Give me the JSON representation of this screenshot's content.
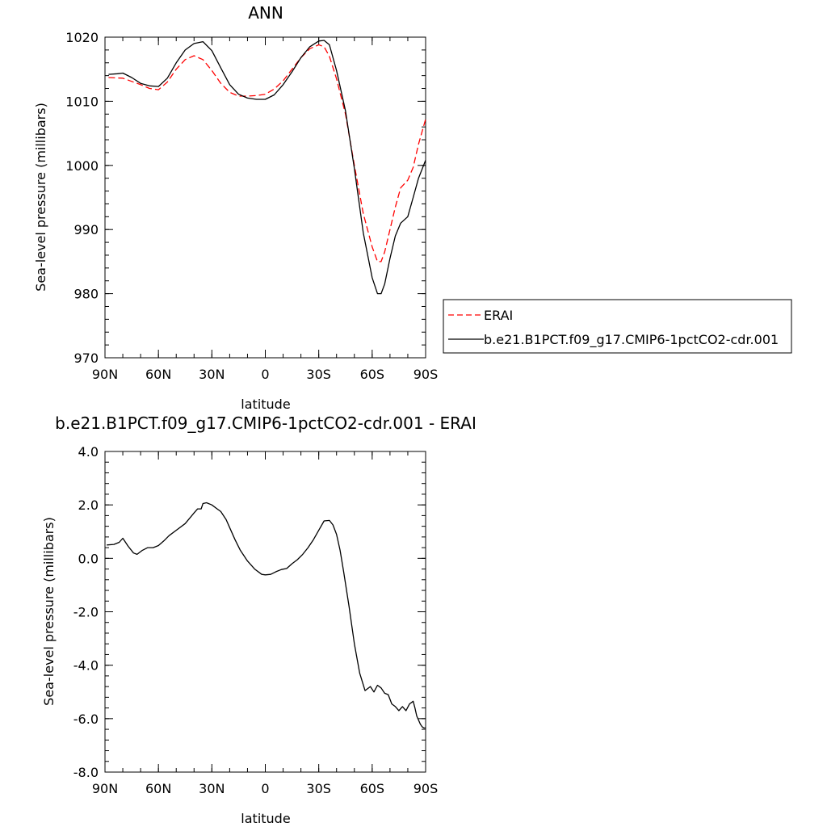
{
  "chart_data": [
    {
      "type": "line",
      "title": "ANN",
      "xlabel": "latitude",
      "ylabel": "Sea-level pressure (millibars)",
      "xlim": [
        90,
        -90
      ],
      "ylim": [
        970,
        1020
      ],
      "x_ticks": [
        90,
        60,
        30,
        0,
        -30,
        -60,
        -90
      ],
      "x_tick_labels": [
        "90N",
        "60N",
        "30N",
        "0",
        "30S",
        "60S",
        "90S"
      ],
      "y_ticks": [
        970,
        980,
        990,
        1000,
        1010,
        1020
      ],
      "y_tick_labels": [
        "970",
        "980",
        "990",
        "1000",
        "1010",
        "1020"
      ],
      "grid": false,
      "legend_position": "right",
      "series": [
        {
          "name": "ERAI",
          "color": "#ff0000",
          "dash": "dashed",
          "x": [
            88,
            80,
            75,
            70,
            65,
            60,
            55,
            50,
            45,
            40,
            35,
            30,
            25,
            20,
            15,
            10,
            5,
            0,
            -5,
            -10,
            -15,
            -20,
            -25,
            -30,
            -33,
            -36,
            -40,
            -45,
            -50,
            -55,
            -60,
            -63,
            -65,
            -67,
            -70,
            -73,
            -76,
            -80,
            -83,
            -86,
            -90
          ],
          "y": [
            1013.7,
            1013.6,
            1013.1,
            1012.6,
            1012.0,
            1011.8,
            1013.0,
            1015.0,
            1016.5,
            1017.1,
            1016.5,
            1014.8,
            1012.8,
            1011.4,
            1010.8,
            1010.8,
            1010.9,
            1011.1,
            1011.9,
            1013.2,
            1015.0,
            1016.8,
            1018.2,
            1018.8,
            1018.5,
            1017.0,
            1013.5,
            1008.0,
            1000.0,
            992.5,
            987.3,
            985.0,
            985.0,
            986.5,
            990.0,
            993.5,
            996.5,
            997.7,
            999.7,
            1003.3,
            1007.2
          ]
        },
        {
          "name": "b.e21.B1PCT.f09_g17.CMIP6-1pctCO2-cdr.001",
          "color": "#000000",
          "dash": "solid",
          "x": [
            88,
            83,
            80,
            75,
            70,
            65,
            60,
            55,
            50,
            45,
            40,
            35,
            30,
            25,
            20,
            15,
            10,
            5,
            0,
            -5,
            -10,
            -15,
            -20,
            -25,
            -30,
            -33,
            -36,
            -40,
            -45,
            -50,
            -55,
            -60,
            -63,
            -65,
            -67,
            -70,
            -73,
            -76,
            -80,
            -83,
            -86,
            -90
          ],
          "y": [
            1014.2,
            1014.3,
            1014.4,
            1013.7,
            1012.8,
            1012.4,
            1012.3,
            1013.6,
            1016.0,
            1018.0,
            1019.0,
            1019.3,
            1017.9,
            1015.2,
            1012.6,
            1011.1,
            1010.5,
            1010.3,
            1010.3,
            1011.0,
            1012.6,
            1014.6,
            1016.8,
            1018.5,
            1019.4,
            1019.5,
            1018.8,
            1014.8,
            1008.5,
            999.5,
            989.5,
            982.5,
            980.0,
            980.0,
            981.5,
            985.5,
            989.0,
            991.0,
            992.0,
            995.0,
            998.0,
            1000.8
          ]
        }
      ]
    },
    {
      "type": "line",
      "title": "b.e21.B1PCT.f09_g17.CMIP6-1pctCO2-cdr.001 - ERAI",
      "xlabel": "latitude",
      "ylabel": "Sea-level pressure (millibars)",
      "xlim": [
        90,
        -90
      ],
      "ylim": [
        -8,
        4
      ],
      "x_ticks": [
        90,
        60,
        30,
        0,
        -30,
        -60,
        -90
      ],
      "x_tick_labels": [
        "90N",
        "60N",
        "30N",
        "0",
        "30S",
        "60S",
        "90S"
      ],
      "y_ticks": [
        -8,
        -6,
        -4,
        -2,
        0,
        2,
        4
      ],
      "y_tick_labels": [
        "-8.0",
        "-6.0",
        "-4.0",
        "-2.0",
        "0.0",
        "2.0",
        "4.0"
      ],
      "grid": false,
      "series": [
        {
          "color": "#000000",
          "dash": "solid",
          "x": [
            89,
            85,
            82,
            80,
            77,
            74,
            72,
            69,
            66,
            63,
            60,
            57,
            54,
            50,
            45,
            40,
            38,
            36,
            35,
            33,
            30,
            27,
            25,
            22,
            20,
            17,
            14,
            10,
            6,
            2,
            0,
            -3,
            -6,
            -9,
            -12,
            -15,
            -18,
            -21,
            -24,
            -27,
            -30,
            -33,
            -36,
            -38,
            -40,
            -42,
            -44,
            -47,
            -50,
            -53,
            -56,
            -59,
            -61,
            -63,
            -65,
            -67,
            -69,
            -71,
            -73,
            -75,
            -77,
            -79,
            -81,
            -83,
            -84,
            -85,
            -86,
            -87,
            -88,
            -89,
            -90
          ],
          "y": [
            0.5,
            0.52,
            0.6,
            0.75,
            0.45,
            0.2,
            0.15,
            0.3,
            0.4,
            0.4,
            0.48,
            0.65,
            0.85,
            1.05,
            1.3,
            1.7,
            1.85,
            1.85,
            2.05,
            2.08,
            2.0,
            1.85,
            1.75,
            1.45,
            1.15,
            0.7,
            0.3,
            -0.1,
            -0.4,
            -0.6,
            -0.62,
            -0.6,
            -0.5,
            -0.42,
            -0.38,
            -0.2,
            -0.05,
            0.15,
            0.4,
            0.7,
            1.05,
            1.4,
            1.42,
            1.25,
            0.9,
            0.3,
            -0.5,
            -1.8,
            -3.2,
            -4.3,
            -4.95,
            -4.8,
            -5.0,
            -4.75,
            -4.85,
            -5.05,
            -5.1,
            -5.45,
            -5.55,
            -5.7,
            -5.55,
            -5.7,
            -5.45,
            -5.35,
            -5.6,
            -5.9,
            -6.05,
            -6.2,
            -6.3,
            -6.35,
            -6.35
          ]
        }
      ]
    }
  ]
}
